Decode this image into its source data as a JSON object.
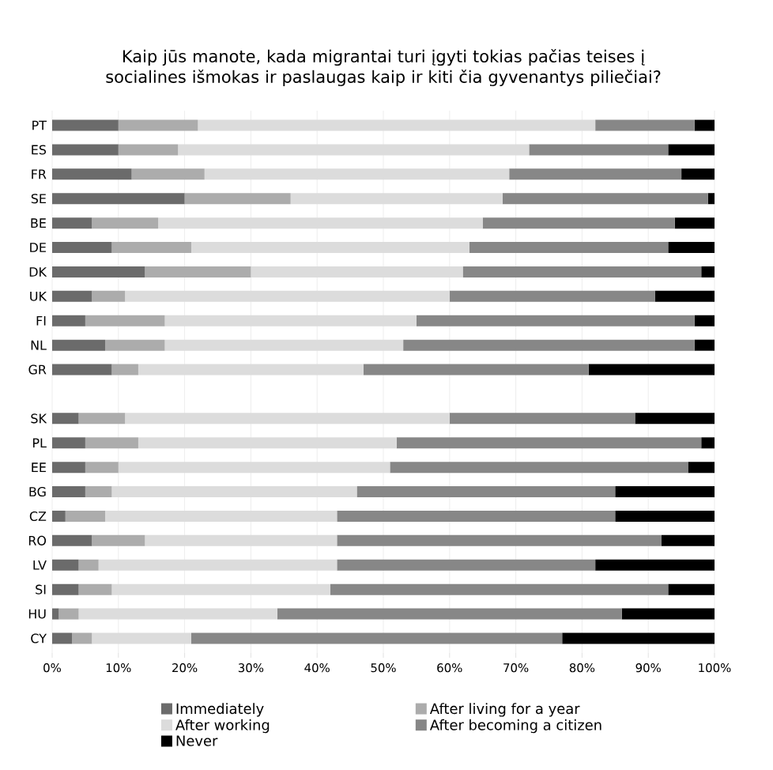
{
  "chart_data": {
    "type": "bar",
    "orientation": "horizontal",
    "stacked": true,
    "title": "Kaip jūs manote, kada migrantai turi įgyti tokias pačias teises į socialines išmokas ir paslaugas kaip ir kiti čia gyvenantys piliečiai?",
    "categories": [
      "PT",
      "ES",
      "FR",
      "SE",
      "BE",
      "DE",
      "DK",
      "UK",
      "FI",
      "NL",
      "GR",
      null,
      "SK",
      "PL",
      "EE",
      "BG",
      "CZ",
      "RO",
      "LV",
      "SI",
      "HU",
      "CY"
    ],
    "series": [
      {
        "name": "Immediately",
        "color": "#6b6b6b",
        "values": [
          10,
          10,
          12,
          20,
          6,
          9,
          14,
          6,
          5,
          8,
          9,
          null,
          4,
          5,
          5,
          5,
          2,
          6,
          4,
          4,
          1,
          3
        ]
      },
      {
        "name": "After living for a year",
        "color": "#acacac",
        "values": [
          12,
          9,
          11,
          16,
          10,
          12,
          16,
          5,
          12,
          9,
          4,
          null,
          7,
          8,
          5,
          4,
          6,
          8,
          3,
          5,
          3,
          3
        ]
      },
      {
        "name": "After working",
        "color": "#dcdcdc",
        "values": [
          60,
          53,
          46,
          32,
          49,
          42,
          32,
          49,
          38,
          36,
          34,
          null,
          49,
          39,
          41,
          37,
          35,
          29,
          36,
          33,
          30,
          15
        ]
      },
      {
        "name": "After becoming a citizen",
        "color": "#878787",
        "values": [
          15,
          21,
          26,
          31,
          29,
          30,
          36,
          31,
          42,
          44,
          34,
          null,
          28,
          46,
          45,
          39,
          42,
          49,
          39,
          51,
          52,
          56
        ]
      },
      {
        "name": "Never",
        "color": "#000000",
        "values": [
          3,
          7,
          5,
          1,
          6,
          7,
          2,
          9,
          3,
          3,
          19,
          null,
          12,
          2,
          4,
          15,
          15,
          8,
          18,
          7,
          14,
          23
        ]
      }
    ],
    "xlim": [
      0,
      100
    ],
    "xticks": [
      {
        "value": 0,
        "label": "0%"
      },
      {
        "value": 10,
        "label": "10%"
      },
      {
        "value": 20,
        "label": "20%"
      },
      {
        "value": 30,
        "label": "30%"
      },
      {
        "value": 40,
        "label": "40%"
      },
      {
        "value": 50,
        "label": "50%"
      },
      {
        "value": 60,
        "label": "60%"
      },
      {
        "value": 70,
        "label": "70%"
      },
      {
        "value": 80,
        "label": "80%"
      },
      {
        "value": 90,
        "label": "90%"
      },
      {
        "value": 100,
        "label": "100%"
      }
    ],
    "grid": "x",
    "legend": "bottom"
  }
}
